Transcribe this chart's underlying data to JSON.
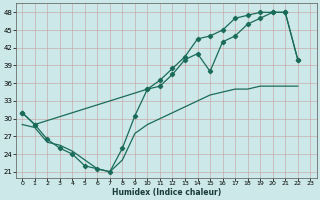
{
  "xlabel": "Humidex (Indice chaleur)",
  "bg_color": "#cce8e8",
  "grid_color": "#b0d4d4",
  "line_color": "#1a6b5a",
  "xlim": [
    -0.5,
    23.5
  ],
  "ylim": [
    20,
    49.5
  ],
  "yticks": [
    21,
    24,
    27,
    30,
    33,
    36,
    39,
    42,
    45,
    48
  ],
  "xticks": [
    0,
    1,
    2,
    3,
    4,
    5,
    6,
    7,
    8,
    9,
    10,
    11,
    12,
    13,
    14,
    15,
    16,
    17,
    18,
    19,
    20,
    21,
    22,
    23
  ],
  "line1_x": [
    0,
    1,
    2,
    3,
    4,
    5,
    6,
    7,
    8,
    9,
    10,
    11,
    12,
    13,
    14,
    15,
    16,
    17,
    18,
    19,
    20,
    21,
    22
  ],
  "line1_y": [
    31,
    29,
    26.5,
    25,
    24,
    22,
    21.5,
    21,
    25,
    30.5,
    35,
    35.5,
    37.5,
    40,
    41,
    38,
    43,
    44,
    46,
    47,
    48,
    48,
    40
  ],
  "line2_x": [
    0,
    1,
    10,
    11,
    12,
    13,
    14,
    15,
    16,
    17,
    18,
    19,
    20,
    21,
    22
  ],
  "line2_y": [
    31,
    29,
    35,
    36.5,
    38.5,
    40.5,
    43.5,
    44,
    45,
    47,
    47.5,
    48,
    48,
    48,
    40
  ],
  "line3_x": [
    0,
    1,
    2,
    3,
    4,
    5,
    6,
    7,
    8,
    9,
    10,
    11,
    12,
    13,
    14,
    15,
    16,
    17,
    18,
    19,
    20,
    21,
    22
  ],
  "line3_y": [
    29,
    28.5,
    26,
    25.5,
    24.5,
    23,
    21.5,
    21,
    23,
    27.5,
    29,
    30,
    31,
    32,
    33,
    34,
    34.5,
    35,
    35,
    35.5,
    35.5,
    35.5,
    35.5
  ]
}
